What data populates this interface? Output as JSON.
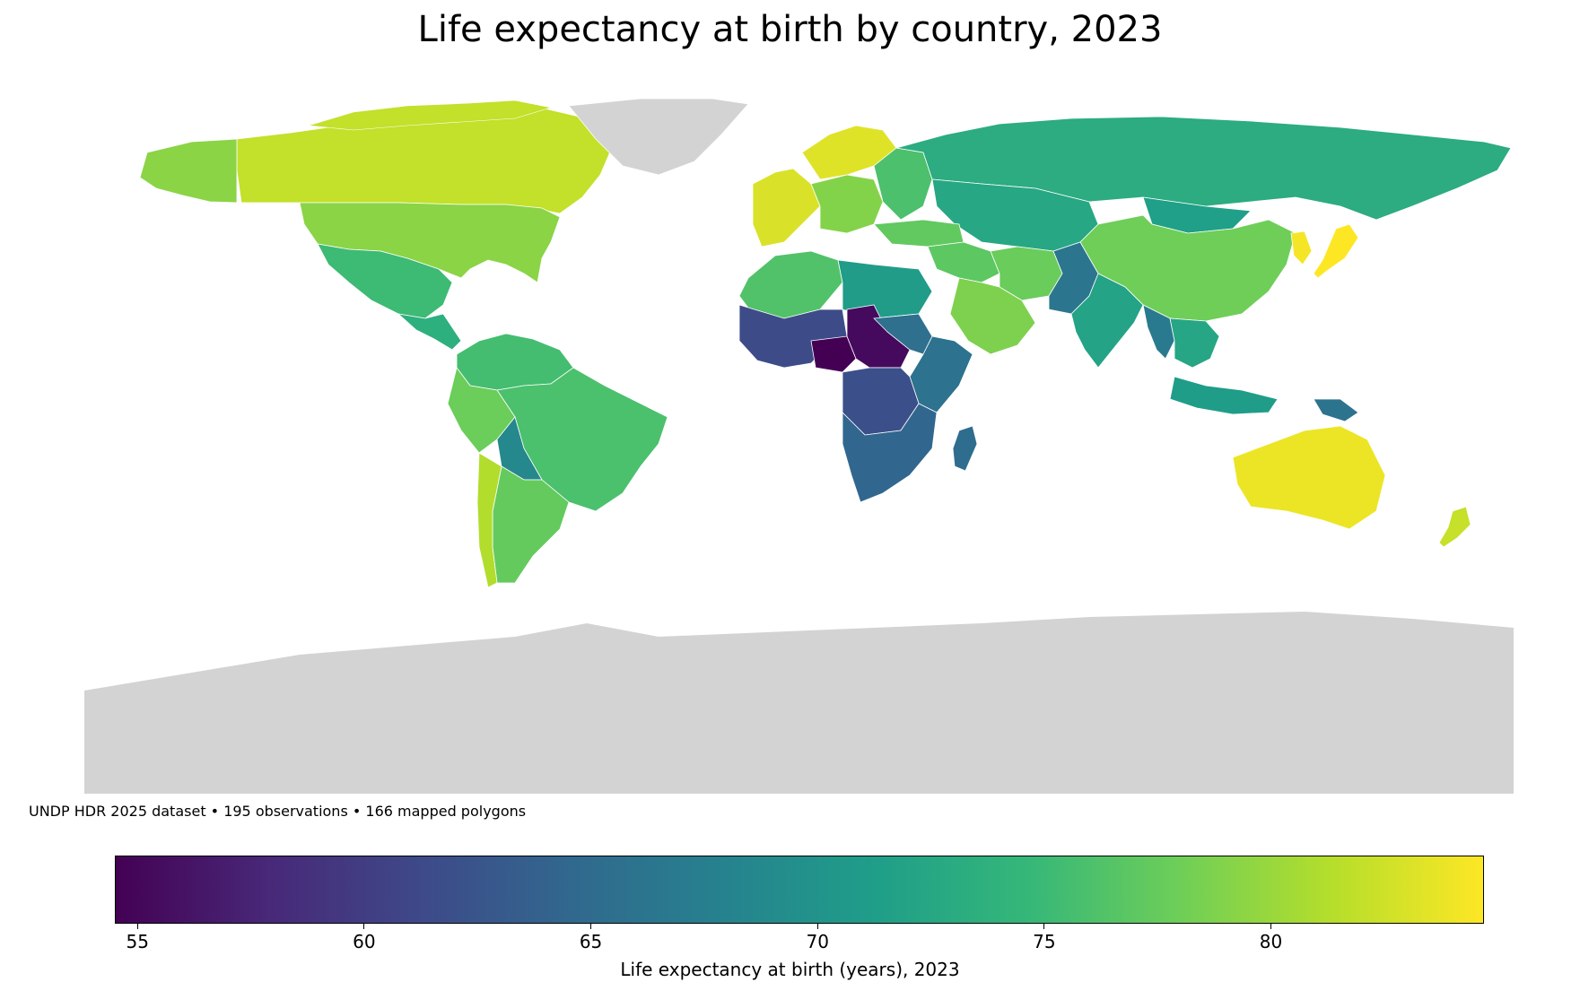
{
  "title": "Life expectancy at birth by country, 2023",
  "footnote": "UNDP HDR 2025 dataset • 195 observations • 166 mapped polygons",
  "colorbar": {
    "label": "Life expectancy at birth (years), 2023",
    "colormap": "viridis",
    "range": [
      54.5,
      84.7
    ],
    "ticks": [
      {
        "value": 55,
        "label": "55"
      },
      {
        "value": 60,
        "label": "60"
      },
      {
        "value": 65,
        "label": "65"
      },
      {
        "value": 70,
        "label": "70"
      },
      {
        "value": 75,
        "label": "75"
      },
      {
        "value": 80,
        "label": "80"
      }
    ],
    "stops": [
      "#440154",
      "#482878",
      "#3e4989",
      "#31688e",
      "#26828e",
      "#1f9e89",
      "#35b779",
      "#6ece58",
      "#b5de2b",
      "#fde725"
    ]
  },
  "map": {
    "no_data_color": "#d3d3d3",
    "background": "#ffffff",
    "regions": [
      {
        "name": "Canada",
        "value": 82.0
      },
      {
        "name": "United States",
        "value": 79.3
      },
      {
        "name": "Alaska",
        "value": 79.3
      },
      {
        "name": "Greenland",
        "value": null
      },
      {
        "name": "Mexico",
        "value": 75.1
      },
      {
        "name": "Central America",
        "value": 73.5
      },
      {
        "name": "Colombia & Venezuela",
        "value": 75.5
      },
      {
        "name": "Brazil",
        "value": 75.9
      },
      {
        "name": "Bolivia",
        "value": 68.6
      },
      {
        "name": "Peru",
        "value": 77.8
      },
      {
        "name": "Argentina",
        "value": 77.4
      },
      {
        "name": "Chile",
        "value": 81.2
      },
      {
        "name": "Western Europe",
        "value": 83.0
      },
      {
        "name": "Scandinavia",
        "value": 83.3
      },
      {
        "name": "Central Europe",
        "value": 79.0
      },
      {
        "name": "Eastern Europe",
        "value": 76.0
      },
      {
        "name": "Russia",
        "value": 73.2
      },
      {
        "name": "Central Asia",
        "value": 72.5
      },
      {
        "name": "Mongolia",
        "value": 71.5
      },
      {
        "name": "China",
        "value": 78.0
      },
      {
        "name": "Japan",
        "value": 84.7
      },
      {
        "name": "Korea",
        "value": 84.3
      },
      {
        "name": "Turkey",
        "value": 77.2
      },
      {
        "name": "Middle East",
        "value": 77.0
      },
      {
        "name": "Iran",
        "value": 77.7
      },
      {
        "name": "Saudi Arabia",
        "value": 78.7
      },
      {
        "name": "Afghanistan & Pakistan",
        "value": 66.4
      },
      {
        "name": "India",
        "value": 72.0
      },
      {
        "name": "Southeast Asia",
        "value": 72.4
      },
      {
        "name": "Myanmar",
        "value": 66.9
      },
      {
        "name": "Indonesia",
        "value": 71.2
      },
      {
        "name": "Papua New Guinea",
        "value": 66.1
      },
      {
        "name": "Australia",
        "value": 83.9
      },
      {
        "name": "New Zealand",
        "value": 82.2
      },
      {
        "name": "North Africa",
        "value": 76.3
      },
      {
        "name": "Libya & Egypt",
        "value": 71.0
      },
      {
        "name": "West Africa",
        "value": 61.5
      },
      {
        "name": "Nigeria",
        "value": 54.5
      },
      {
        "name": "Chad & CAR",
        "value": 55.3
      },
      {
        "name": "Sudan",
        "value": 65.6
      },
      {
        "name": "East Africa",
        "value": 65.8
      },
      {
        "name": "Central Africa",
        "value": 61.9
      },
      {
        "name": "Southern Africa",
        "value": 64.5
      },
      {
        "name": "Madagascar",
        "value": 65.2
      },
      {
        "name": "Antarctica",
        "value": null
      }
    ]
  }
}
